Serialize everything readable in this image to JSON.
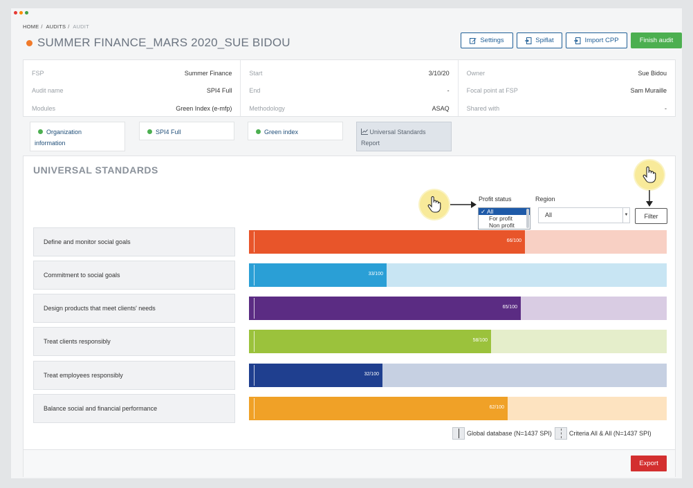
{
  "window": {
    "dots": [
      "#e53935",
      "#fb8c00",
      "#43a047"
    ]
  },
  "breadcrumb": {
    "home": "HOME",
    "audits": "AUDITS",
    "current": "AUDIT"
  },
  "header": {
    "title": "SUMMER FINANCE_MARS 2020_SUE BIDOU",
    "status_color": "#f07a2a"
  },
  "toolbar": {
    "settings": "Settings",
    "spiflat": "Spiflat",
    "import_cpp": "Import CPP",
    "finish_audit": "Finish audit"
  },
  "info": {
    "col1": [
      {
        "k": "FSP",
        "v": "Summer Finance"
      },
      {
        "k": "Audit name",
        "v": "SPI4 Full"
      },
      {
        "k": "Modules",
        "v": "Green Index (e-mfp)"
      }
    ],
    "col2": [
      {
        "k": "Start",
        "v": "3/10/20"
      },
      {
        "k": "End",
        "v": "-"
      },
      {
        "k": "Methodology",
        "v": "ASAQ"
      }
    ],
    "col3": [
      {
        "k": "Owner",
        "v": "Sue Bidou"
      },
      {
        "k": "Focal point at FSP",
        "v": "Sam Muraille"
      },
      {
        "k": "Shared with",
        "v": "-"
      }
    ]
  },
  "tabs": [
    {
      "label_line1": "Organization",
      "label_line2": "information"
    },
    {
      "label_line1": "SPI4 Full"
    },
    {
      "label_line1": "Green index"
    },
    {
      "label_line1": "Universal Standards",
      "label_line2": "Report"
    }
  ],
  "section": {
    "title": "UNIVERSAL STANDARDS"
  },
  "filters": {
    "profit_label": "Profit status",
    "region_label": "Region",
    "profit_options": [
      "All",
      "For profit",
      "Non profit"
    ],
    "profit_selected": "All",
    "region_value": "All",
    "filter_button": "Filter"
  },
  "rows": [
    {
      "label": "Define and monitor social goals",
      "value": 66,
      "score_text": "66/100",
      "color": "#e8552a",
      "track": "#f8d0c4"
    },
    {
      "label": "Commitment to social goals",
      "value": 33,
      "score_text": "33/100",
      "color": "#2a9fd6",
      "track": "#c8e5f3"
    },
    {
      "label": "Design products that meet clients' needs",
      "value": 65,
      "score_text": "65/100",
      "color": "#5b2c83",
      "track": "#d9cce3"
    },
    {
      "label": "Treat clients responsibly",
      "value": 58,
      "score_text": "58/100",
      "color": "#9bc23c",
      "track": "#e5eecb"
    },
    {
      "label": "Treat employees responsibly",
      "value": 32,
      "score_text": "32/100",
      "color": "#1f3f8f",
      "track": "#c6d0e2"
    },
    {
      "label": "Balance social and financial performance",
      "value": 62,
      "score_text": "62/100",
      "color": "#f0a127",
      "track": "#fde3c0"
    }
  ],
  "legend": {
    "global": "Global database (N=1437 SPI)",
    "criteria": "Criteria All & All (N=1437 SPI)"
  },
  "footer": {
    "export": "Export"
  }
}
